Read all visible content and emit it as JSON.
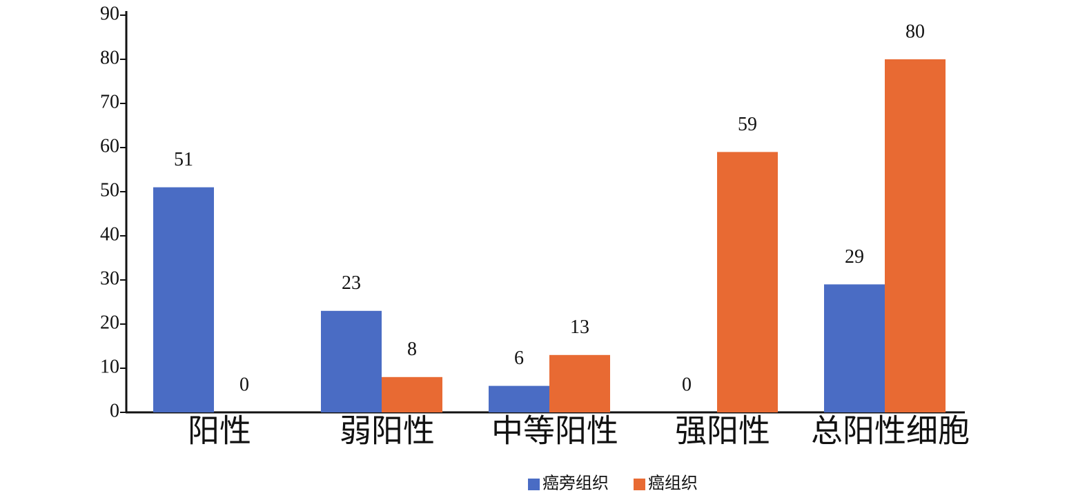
{
  "chart_data": {
    "type": "bar",
    "categories": [
      "阳性",
      "弱阳性",
      "中等阳性",
      "强阳性",
      "总阳性细胞"
    ],
    "series": [
      {
        "name": "癌旁组织",
        "color": "#4a6cc4",
        "values": [
          51,
          23,
          6,
          0,
          29
        ]
      },
      {
        "name": "癌组织",
        "color": "#e86a33",
        "values": [
          0,
          8,
          13,
          59,
          80
        ]
      }
    ],
    "ylim": [
      0,
      90
    ],
    "yticks": [
      0,
      10,
      20,
      30,
      40,
      50,
      60,
      70,
      80,
      90
    ]
  }
}
